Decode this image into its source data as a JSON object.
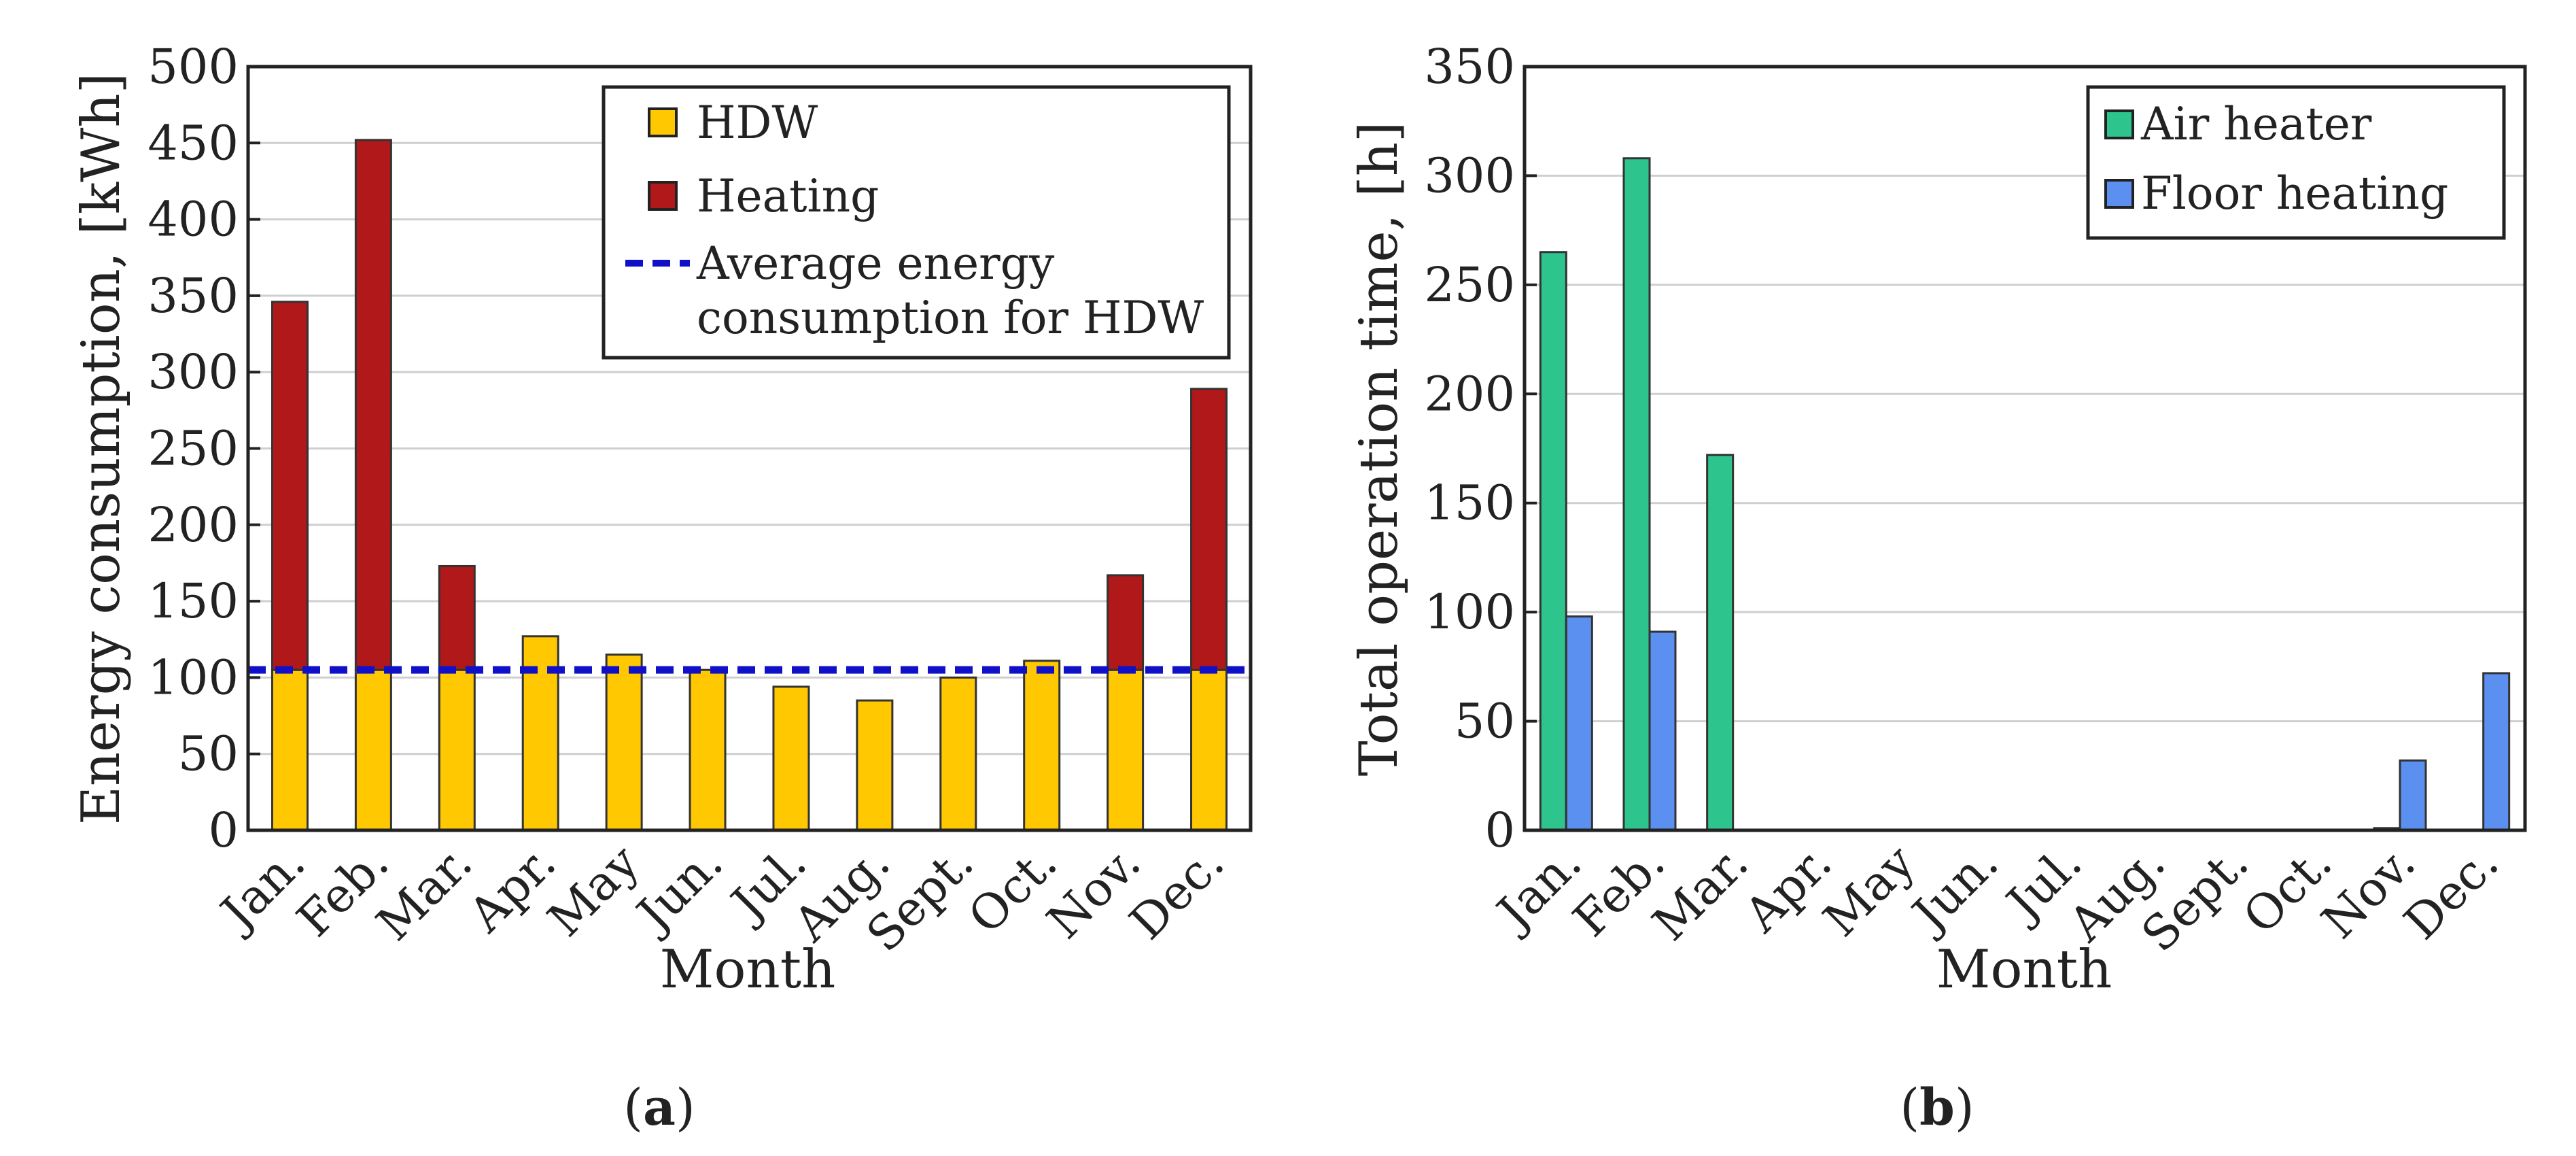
{
  "chart_data": [
    {
      "id": "a",
      "type": "bar",
      "stacked": true,
      "panel_label": "(a)",
      "panel_letter": "a",
      "title": "",
      "xlabel": "Month",
      "ylabel": "Energy consumption, [kWh]",
      "ylim": [
        0,
        500
      ],
      "yticks": [
        0,
        50,
        100,
        150,
        200,
        250,
        300,
        350,
        400,
        450,
        500
      ],
      "grid": true,
      "categories": [
        "Jan.",
        "Feb.",
        "Mar.",
        "Apr.",
        "May",
        "Jun.",
        "Jul.",
        "Aug.",
        "Sept.",
        "Oct.",
        "Nov.",
        "Dec."
      ],
      "series": [
        {
          "name": "HDW",
          "color": "#FFC800",
          "values": [
            105,
            105,
            105,
            127,
            115,
            105,
            94,
            85,
            100,
            111,
            105,
            105
          ]
        },
        {
          "name": "Heating",
          "color": "#B0181A",
          "values": [
            241,
            347,
            68,
            0,
            0,
            0,
            0,
            0,
            0,
            0,
            62,
            184
          ]
        }
      ],
      "reference_line": {
        "name_line1": "Average energy",
        "name_line2": "consumption for HDW",
        "value": 105,
        "color": "#1010C8"
      },
      "legend_position": "top-right"
    },
    {
      "id": "b",
      "type": "bar",
      "stacked": false,
      "panel_label": "(b)",
      "panel_letter": "b",
      "title": "",
      "xlabel": "Month",
      "ylabel": "Total operation time, [h]",
      "ylim": [
        0,
        350
      ],
      "yticks": [
        0,
        50,
        100,
        150,
        200,
        250,
        300,
        350
      ],
      "grid": true,
      "categories": [
        "Jan.",
        "Feb.",
        "Mar.",
        "Apr.",
        "May",
        "Jun.",
        "Jul.",
        "Aug.",
        "Sept.",
        "Oct.",
        "Nov.",
        "Dec."
      ],
      "series": [
        {
          "name": "Air heater",
          "color": "#2EC48E",
          "values": [
            265,
            308,
            172,
            0,
            0,
            0,
            0,
            0,
            0,
            0,
            1,
            0
          ]
        },
        {
          "name": "Floor heating",
          "color": "#5B8FF0",
          "values": [
            98,
            91,
            0,
            0,
            0,
            0,
            0,
            0,
            0,
            0,
            32,
            72
          ]
        }
      ],
      "legend_position": "top-right"
    }
  ]
}
